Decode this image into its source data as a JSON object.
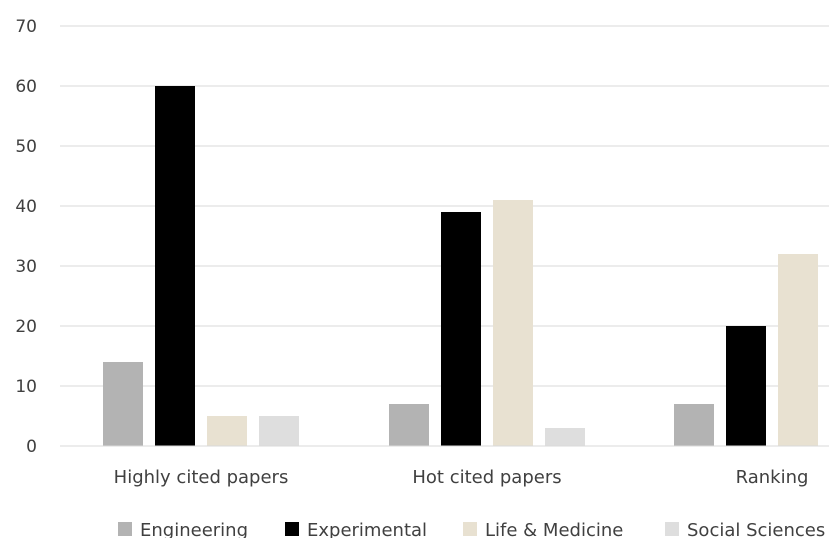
{
  "chart_data": {
    "type": "bar",
    "categories": [
      "Highly cited papers",
      "Hot cited papers",
      "Ranking"
    ],
    "series": [
      {
        "name": "Engineering",
        "color": "#b3b3b3",
        "values": [
          14,
          7,
          7
        ]
      },
      {
        "name": "Experimental",
        "color": "#000000",
        "values": [
          60,
          39,
          20
        ]
      },
      {
        "name": "Life & Medicine",
        "color": "#e8e1d1",
        "values": [
          5,
          41,
          32
        ]
      },
      {
        "name": "Social Sciences",
        "color": "#dedede",
        "values": [
          5,
          3,
          null
        ]
      }
    ],
    "yticks": [
      0,
      10,
      20,
      30,
      40,
      50,
      60,
      70
    ],
    "ylim": [
      0,
      70
    ],
    "grid": true,
    "legend_position": "bottom"
  }
}
